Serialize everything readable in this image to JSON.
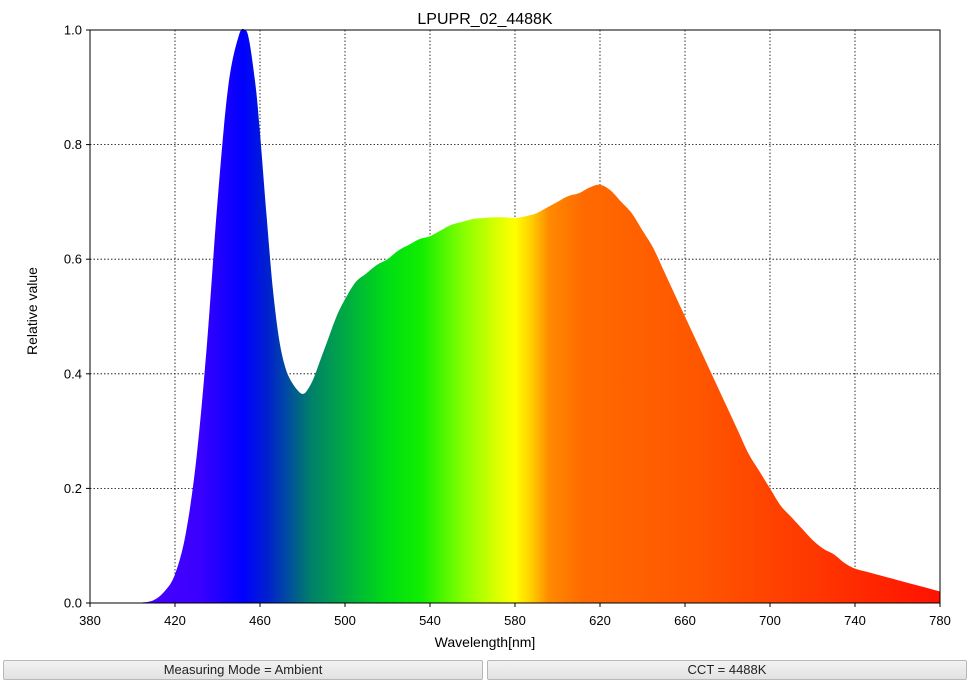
{
  "chart_data": {
    "type": "area",
    "title": "LPUPR_02_4488K",
    "xlabel": "Wavelength[nm]",
    "ylabel": "Relative value",
    "xlim": [
      380,
      780
    ],
    "ylim": [
      0,
      1.0
    ],
    "xticks": [
      380,
      420,
      460,
      500,
      540,
      580,
      620,
      660,
      700,
      740,
      780
    ],
    "yticks": [
      0.0,
      0.2,
      0.4,
      0.6,
      0.8,
      1.0
    ],
    "yticklabels": [
      "0.0",
      "0.2",
      "0.4",
      "0.6",
      "0.8",
      "1.0"
    ],
    "grid": true,
    "series": [
      {
        "x": [
          380,
          390,
          400,
          405,
          410,
          415,
          420,
          425,
          430,
          435,
          440,
          445,
          450,
          453,
          455,
          458,
          460,
          463,
          466,
          469,
          472,
          475,
          478,
          480,
          482,
          485,
          488,
          492,
          496,
          500,
          505,
          510,
          515,
          520,
          525,
          530,
          535,
          540,
          545,
          550,
          555,
          560,
          565,
          570,
          575,
          580,
          585,
          590,
          595,
          600,
          605,
          610,
          615,
          620,
          625,
          630,
          635,
          640,
          645,
          650,
          655,
          660,
          665,
          670,
          675,
          680,
          685,
          690,
          695,
          700,
          705,
          710,
          715,
          720,
          725,
          730,
          735,
          740,
          745,
          750,
          755,
          760,
          765,
          770,
          775,
          780
        ],
        "y": [
          0,
          0,
          0,
          0.001,
          0.005,
          0.02,
          0.05,
          0.12,
          0.25,
          0.45,
          0.7,
          0.9,
          0.99,
          1.0,
          0.98,
          0.9,
          0.82,
          0.68,
          0.55,
          0.46,
          0.41,
          0.385,
          0.37,
          0.365,
          0.37,
          0.39,
          0.42,
          0.46,
          0.5,
          0.53,
          0.56,
          0.575,
          0.59,
          0.6,
          0.615,
          0.625,
          0.635,
          0.64,
          0.65,
          0.66,
          0.665,
          0.67,
          0.672,
          0.673,
          0.673,
          0.672,
          0.675,
          0.68,
          0.69,
          0.7,
          0.71,
          0.715,
          0.725,
          0.73,
          0.72,
          0.7,
          0.68,
          0.65,
          0.62,
          0.58,
          0.54,
          0.5,
          0.46,
          0.42,
          0.38,
          0.34,
          0.3,
          0.26,
          0.23,
          0.2,
          0.17,
          0.15,
          0.13,
          0.11,
          0.095,
          0.085,
          0.07,
          0.06,
          0.055,
          0.05,
          0.045,
          0.04,
          0.035,
          0.03,
          0.025,
          0.02
        ]
      }
    ]
  },
  "status": {
    "left": "Measuring Mode = Ambient",
    "right": "CCT = 4488K"
  }
}
